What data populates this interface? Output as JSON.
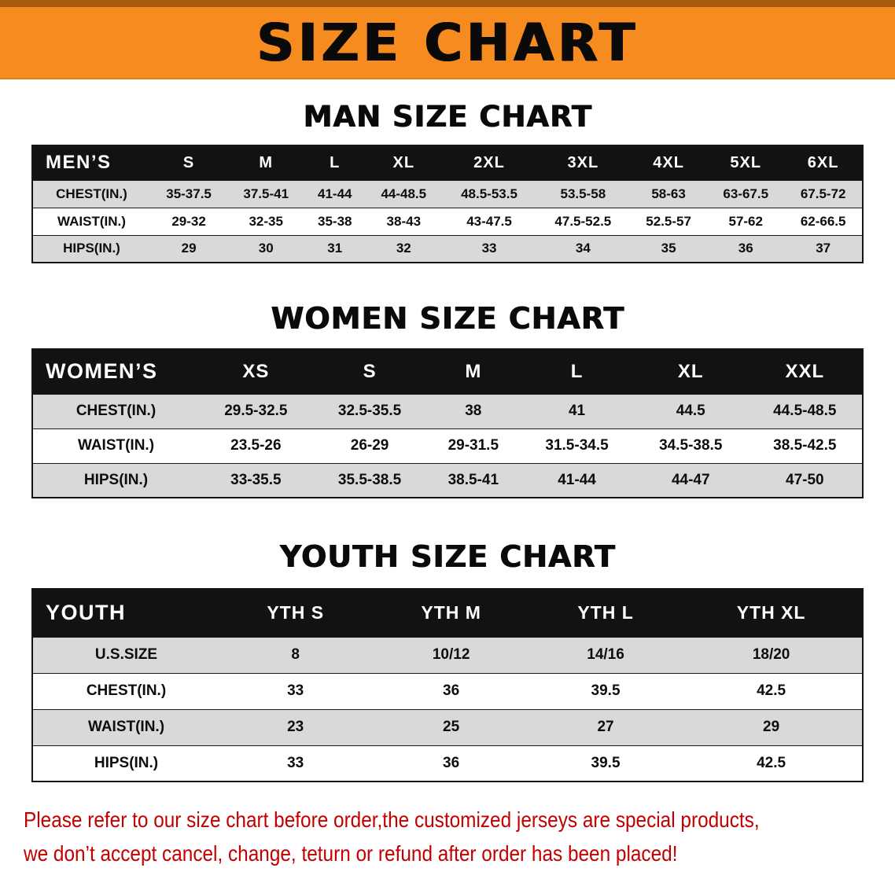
{
  "banner": {
    "title": "SIZE CHART"
  },
  "sections": [
    {
      "heading": "MAN SIZE CHART",
      "table": {
        "label": "MEN’S",
        "columns": [
          "S",
          "M",
          "L",
          "XL",
          "2XL",
          "3XL",
          "4XL",
          "5XL",
          "6XL"
        ],
        "rows": [
          {
            "label": "CHEST(IN.)",
            "values": [
              "35-37.5",
              "37.5-41",
              "41-44",
              "44-48.5",
              "48.5-53.5",
              "53.5-58",
              "58-63",
              "63-67.5",
              "67.5-72"
            ]
          },
          {
            "label": "WAIST(IN.)",
            "values": [
              "29-32",
              "32-35",
              "35-38",
              "38-43",
              "43-47.5",
              "47.5-52.5",
              "52.5-57",
              "57-62",
              "62-66.5"
            ]
          },
          {
            "label": "HIPS(IN.)",
            "values": [
              "29",
              "30",
              "31",
              "32",
              "33",
              "34",
              "35",
              "36",
              "37"
            ]
          }
        ]
      }
    },
    {
      "heading": "WOMEN SIZE CHART",
      "table": {
        "label": "WOMEN’S",
        "columns": [
          "XS",
          "S",
          "M",
          "L",
          "XL",
          "XXL"
        ],
        "rows": [
          {
            "label": "CHEST(IN.)",
            "values": [
              "29.5-32.5",
              "32.5-35.5",
              "38",
              "41",
              "44.5",
              "44.5-48.5"
            ]
          },
          {
            "label": "WAIST(IN.)",
            "values": [
              "23.5-26",
              "26-29",
              "29-31.5",
              "31.5-34.5",
              "34.5-38.5",
              "38.5-42.5"
            ]
          },
          {
            "label": "HIPS(IN.)",
            "values": [
              "33-35.5",
              "35.5-38.5",
              "38.5-41",
              "41-44",
              "44-47",
              "47-50"
            ]
          }
        ]
      }
    },
    {
      "heading": "YOUTH SIZE CHART",
      "table": {
        "label": "YOUTH",
        "columns": [
          "YTH S",
          "YTH M",
          "YTH L",
          "YTH XL"
        ],
        "rows": [
          {
            "label": "U.S.SIZE",
            "values": [
              "8",
              "10/12",
              "14/16",
              "18/20"
            ]
          },
          {
            "label": "CHEST(IN.)",
            "values": [
              "33",
              "36",
              "39.5",
              "42.5"
            ]
          },
          {
            "label": "WAIST(IN.)",
            "values": [
              "23",
              "25",
              "27",
              "29"
            ]
          },
          {
            "label": "HIPS(IN.)",
            "values": [
              "33",
              "36",
              "39.5",
              "42.5"
            ]
          }
        ]
      }
    }
  ],
  "disclaimer": {
    "line1": "Please refer to our size chart before order,the customized jerseys are special products,",
    "line2": "we don’t accept cancel, change, teturn or refund after order has been placed!"
  },
  "colors": {
    "orange": "#F68B1F",
    "orange_dark": "#A55D0D",
    "table_header": "#121212",
    "stripe": "#D9D9D9",
    "red": "#C30000"
  }
}
